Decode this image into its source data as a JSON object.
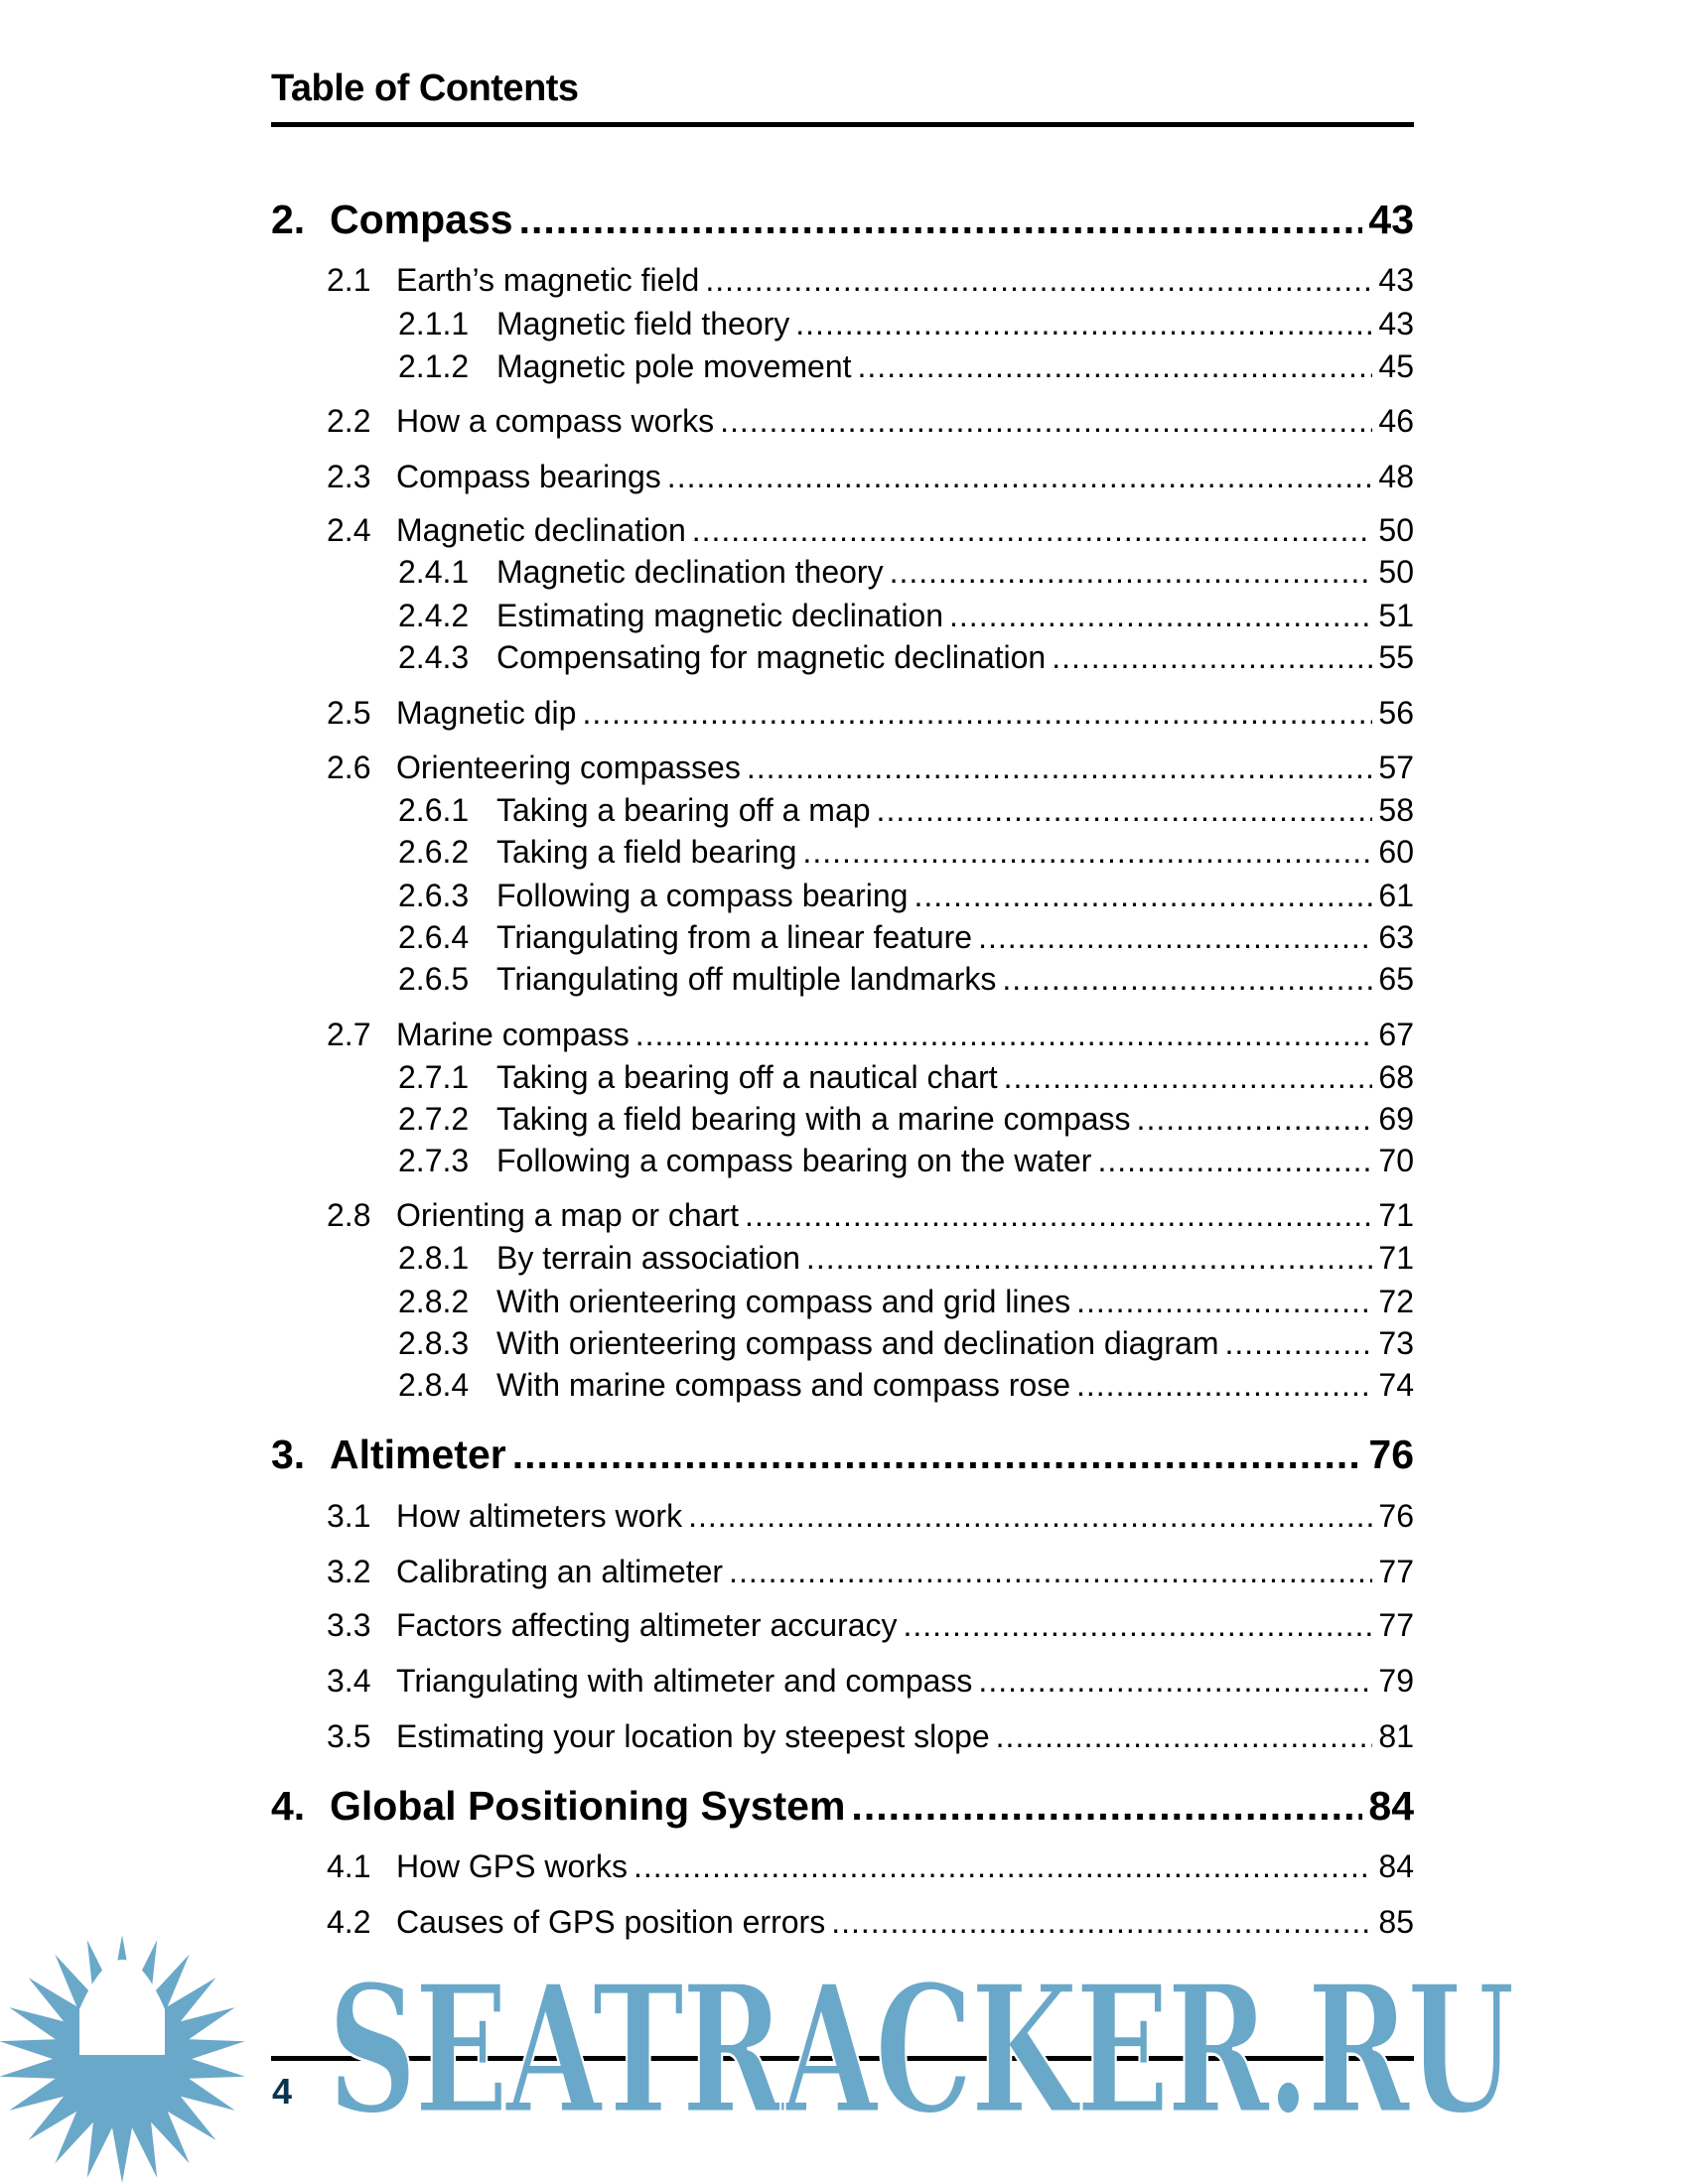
{
  "header": {
    "title": "Table of Contents"
  },
  "entries": [
    {
      "level": 0,
      "number": "2.",
      "title": "Compass",
      "page": "43"
    },
    {
      "level": 1,
      "number": "2.1",
      "title": "Earth’s magnetic field",
      "page": "43"
    },
    {
      "level": 2,
      "number": "2.1.1",
      "title": "Magnetic field theory",
      "page": "43"
    },
    {
      "level": 2,
      "number": "2.1.2",
      "title": "Magnetic pole movement",
      "page": "45"
    },
    {
      "level": 1,
      "number": "2.2",
      "title": "How a compass works",
      "page": "46"
    },
    {
      "level": 1,
      "number": "2.3",
      "title": "Compass bearings",
      "page": "48"
    },
    {
      "level": 1,
      "number": "2.4",
      "title": "Magnetic declination",
      "page": "50"
    },
    {
      "level": 2,
      "number": "2.4.1",
      "title": "Magnetic declination theory",
      "page": "50"
    },
    {
      "level": 2,
      "number": "2.4.2",
      "title": "Estimating magnetic declination",
      "page": "51"
    },
    {
      "level": 2,
      "number": "2.4.3",
      "title": "Compensating for magnetic declination",
      "page": "55"
    },
    {
      "level": 1,
      "number": "2.5",
      "title": "Magnetic dip",
      "page": "56"
    },
    {
      "level": 1,
      "number": "2.6",
      "title": "Orienteering compasses",
      "page": "57"
    },
    {
      "level": 2,
      "number": "2.6.1",
      "title": "Taking a bearing off a map",
      "page": "58"
    },
    {
      "level": 2,
      "number": "2.6.2",
      "title": "Taking a field bearing",
      "page": "60"
    },
    {
      "level": 2,
      "number": "2.6.3",
      "title": "Following a compass bearing",
      "page": "61"
    },
    {
      "level": 2,
      "number": "2.6.4",
      "title": "Triangulating from a linear feature",
      "page": "63"
    },
    {
      "level": 2,
      "number": "2.6.5",
      "title": "Triangulating off multiple landmarks",
      "page": "65"
    },
    {
      "level": 1,
      "number": "2.7",
      "title": "Marine compass",
      "page": "67"
    },
    {
      "level": 2,
      "number": "2.7.1",
      "title": "Taking a bearing off a nautical chart",
      "page": "68"
    },
    {
      "level": 2,
      "number": "2.7.2",
      "title": "Taking a field bearing with a marine compass",
      "page": "69"
    },
    {
      "level": 2,
      "number": "2.7.3",
      "title": "Following a compass bearing on the water",
      "page": "70"
    },
    {
      "level": 1,
      "number": "2.8",
      "title": "Orienting a map or chart",
      "page": "71"
    },
    {
      "level": 2,
      "number": "2.8.1",
      "title": "By terrain association",
      "page": "71"
    },
    {
      "level": 2,
      "number": "2.8.2",
      "title": "With orienteering compass and grid lines",
      "page": "72"
    },
    {
      "level": 2,
      "number": "2.8.3",
      "title": "With orienteering compass and declination diagram",
      "page": "73"
    },
    {
      "level": 2,
      "number": "2.8.4",
      "title": "With marine compass and compass rose",
      "page": "74"
    },
    {
      "level": 0,
      "number": "3.",
      "title": "Altimeter",
      "page": "76"
    },
    {
      "level": 1,
      "number": "3.1",
      "title": "How altimeters work",
      "page": "76"
    },
    {
      "level": 1,
      "number": "3.2",
      "title": "Calibrating an altimeter",
      "page": "77"
    },
    {
      "level": 1,
      "number": "3.3",
      "title": "Factors affecting altimeter accuracy",
      "page": "77"
    },
    {
      "level": 1,
      "number": "3.4",
      "title": "Triangulating with altimeter and compass",
      "page": "79"
    },
    {
      "level": 1,
      "number": "3.5",
      "title": "Estimating your location by steepest slope",
      "page": "81"
    },
    {
      "level": 0,
      "number": "4.",
      "title": "Global Positioning System",
      "page": "84"
    },
    {
      "level": 1,
      "number": "4.1",
      "title": "How GPS works",
      "page": "84"
    },
    {
      "level": 1,
      "number": "4.2",
      "title": "Causes of GPS position errors",
      "page": "85"
    }
  ],
  "footer": {
    "page_number": "4"
  },
  "watermark": {
    "text": "SEATRACKER.RU",
    "color": "#6aa8c9",
    "icon": "sun-icon"
  }
}
